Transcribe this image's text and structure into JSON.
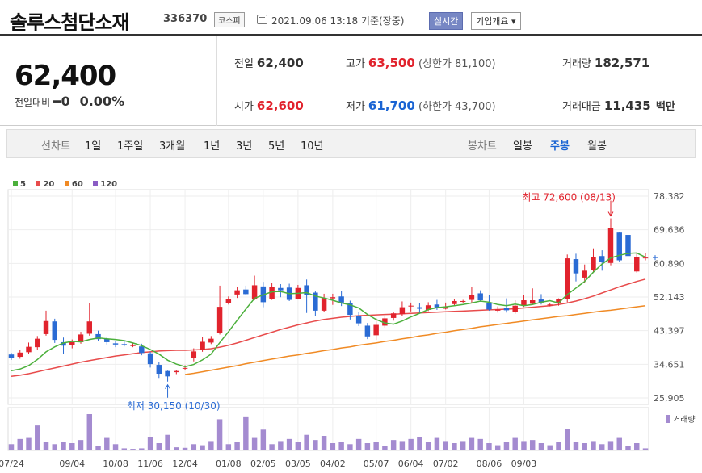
{
  "header": {
    "stock_name": "솔루스첨단소재",
    "stock_code": "336370",
    "market_badge": "코스피",
    "datetime": "2021.09.06 13:18 기준(장중)",
    "realtime_button": "실시간",
    "company_info_button": "기업개요 ▾"
  },
  "summary": {
    "price": "62,400",
    "change_label": "전일대비",
    "change_value": "━0",
    "change_pct": "0.00%",
    "prev_close_label": "전일",
    "prev_close": "62,400",
    "high_label": "고가",
    "high": "63,500",
    "upper_limit": "(상한가 81,100)",
    "volume_label": "거래량",
    "volume": "182,571",
    "open_label": "시가",
    "open": "62,600",
    "low_label": "저가",
    "low": "61,700",
    "lower_limit": "(하한가 43,700)",
    "amount_label": "거래대금",
    "amount": "11,435",
    "amount_unit": "백만"
  },
  "period_bar": {
    "line_chart_label": "선차트",
    "periods": [
      "1일",
      "1주일",
      "3개월",
      "1년",
      "3년",
      "5년",
      "10년"
    ],
    "candle_label": "봉차트",
    "candle_periods": [
      "일봉",
      "주봉",
      "월봉"
    ],
    "selected_candle": "주봉"
  },
  "chart_data": {
    "type": "candlestick",
    "legend": [
      {
        "name": "5",
        "color": "#4cb03c"
      },
      {
        "name": "20",
        "color": "#e84b4b"
      },
      {
        "name": "60",
        "color": "#f08a24"
      },
      {
        "name": "120",
        "color": "#8a5cc4"
      }
    ],
    "y_ticks": [
      78382,
      69636,
      60890,
      52143,
      43397,
      34651,
      25905
    ],
    "y_tick_labels": [
      "78,382",
      "69,636",
      "60,890",
      "52,143",
      "43,397",
      "34,651",
      "25,905"
    ],
    "ylim": [
      25905,
      78382
    ],
    "x_tick_labels": [
      "07/24",
      "09/04",
      "10/08",
      "11/06",
      "12/04",
      "01/08",
      "02/05",
      "03/05",
      "04/02",
      "05/07",
      "06/04",
      "07/02",
      "08/06",
      "09/03"
    ],
    "x_tick_index": [
      0,
      7,
      12,
      16,
      20,
      25,
      29,
      33,
      37,
      42,
      46,
      50,
      55,
      59
    ],
    "max_annotation": "최고 72,600 (08/13)",
    "min_annotation": "최저 30,150 (10/30)",
    "volume_label": "거래량",
    "up_color": "#e1232d",
    "down_color": "#2a6bd4",
    "candles": [
      [
        37200,
        36400,
        37600,
        35800
      ],
      [
        36600,
        37700,
        38300,
        36100
      ],
      [
        37800,
        39200,
        40300,
        37300
      ],
      [
        39100,
        41300,
        42000,
        38500
      ],
      [
        42500,
        45900,
        48600,
        42100
      ],
      [
        45800,
        41000,
        46500,
        40200
      ],
      [
        40400,
        39500,
        41600,
        37400
      ],
      [
        39600,
        40400,
        41100,
        38800
      ],
      [
        40400,
        42400,
        43100,
        40000
      ],
      [
        42600,
        45800,
        50500,
        42100
      ],
      [
        42500,
        41200,
        43400,
        40600
      ],
      [
        41300,
        40400,
        41600,
        39800
      ],
      [
        40100,
        39800,
        40700,
        39100
      ],
      [
        39900,
        39600,
        40700,
        39300
      ],
      [
        39400,
        39700,
        40300,
        39100
      ],
      [
        39300,
        37600,
        40000,
        37000
      ],
      [
        37500,
        34700,
        37900,
        33800
      ],
      [
        34500,
        32200,
        35300,
        31100
      ],
      [
        32900,
        31500,
        33000,
        30150
      ],
      [
        32600,
        32900,
        33200,
        32100
      ],
      [
        33500,
        33700,
        34400,
        33200
      ],
      [
        36300,
        38000,
        38800,
        35400
      ],
      [
        38400,
        40500,
        41800,
        37900
      ],
      [
        40300,
        41300,
        42000,
        39900
      ],
      [
        42900,
        49600,
        55100,
        42400
      ],
      [
        50500,
        51600,
        52300,
        50200
      ],
      [
        52800,
        53900,
        54700,
        51900
      ],
      [
        54100,
        52900,
        55100,
        52600
      ],
      [
        51700,
        55200,
        57700,
        51300
      ],
      [
        54900,
        50800,
        56100,
        49500
      ],
      [
        51700,
        54800,
        55800,
        51400
      ],
      [
        54500,
        53900,
        55500,
        52100
      ],
      [
        54600,
        51400,
        55600,
        51100
      ],
      [
        51700,
        54500,
        55300,
        51500
      ],
      [
        55200,
        52700,
        56700,
        48000
      ],
      [
        53300,
        48600,
        53600,
        47200
      ],
      [
        48600,
        51900,
        53000,
        48200
      ],
      [
        51800,
        52100,
        53000,
        50100
      ],
      [
        52300,
        50700,
        53700,
        49800
      ],
      [
        50600,
        47500,
        51200,
        46300
      ],
      [
        47200,
        45300,
        48300,
        44600
      ],
      [
        44700,
        41900,
        45400,
        41200
      ],
      [
        42200,
        44900,
        46700,
        41000
      ],
      [
        44700,
        46600,
        47300,
        44200
      ],
      [
        46700,
        47900,
        48200,
        46000
      ],
      [
        47700,
        49500,
        51000,
        47200
      ],
      [
        49800,
        49900,
        50700,
        48400
      ],
      [
        49500,
        49100,
        50500,
        48100
      ],
      [
        48800,
        50000,
        50800,
        48500
      ],
      [
        50200,
        49300,
        51400,
        48800
      ],
      [
        49100,
        49600,
        50700,
        48900
      ],
      [
        50300,
        51100,
        51700,
        50000
      ],
      [
        51100,
        51100,
        51400,
        50500
      ],
      [
        51400,
        52700,
        54800,
        50600
      ],
      [
        53100,
        51300,
        53900,
        50900
      ],
      [
        50600,
        48900,
        52600,
        48600
      ],
      [
        48600,
        48900,
        49700,
        48100
      ],
      [
        49300,
        48700,
        51800,
        48100
      ],
      [
        48200,
        49900,
        51300,
        47800
      ],
      [
        49900,
        51300,
        52600,
        49600
      ],
      [
        50400,
        51300,
        54400,
        50100
      ],
      [
        51500,
        50700,
        52900,
        50200
      ],
      [
        50200,
        50200,
        50600,
        49700
      ],
      [
        50500,
        51600,
        51800,
        49900
      ],
      [
        51600,
        62200,
        63200,
        50800
      ],
      [
        62000,
        58300,
        63400,
        56200
      ],
      [
        57200,
        59000,
        60600,
        55900
      ],
      [
        59200,
        62600,
        64800,
        58700
      ],
      [
        62800,
        61200,
        64300,
        59000
      ],
      [
        61000,
        70100,
        72600,
        60400
      ],
      [
        68900,
        61700,
        69100,
        61200
      ],
      [
        68300,
        62800,
        68600,
        58900
      ],
      [
        58800,
        62500,
        63600,
        58500
      ],
      [
        62400,
        62400,
        63500,
        61700
      ]
    ],
    "ma5": [
      33.0,
      33.4,
      34.3,
      35.9,
      37.9,
      39.2,
      40.2,
      40.6,
      40.5,
      41.1,
      41.5,
      41.3,
      41.1,
      40.8,
      40.2,
      39.5,
      38.5,
      37.3,
      35.7,
      34.7,
      34.0,
      34.6,
      35.8,
      37.3,
      40.3,
      43.1,
      46.1,
      49.0,
      51.8,
      52.7,
      53.5,
      53.6,
      53.0,
      53.1,
      53.3,
      52.4,
      51.9,
      51.3,
      50.6,
      50.1,
      49.3,
      47.6,
      46.3,
      45.4,
      45.1,
      45.9,
      47.0,
      47.9,
      48.9,
      49.4,
      49.6,
      49.9,
      50.2,
      50.6,
      51.1,
      50.8,
      50.2,
      49.9,
      50.3,
      49.9,
      50.2,
      50.8,
      51.2,
      50.6,
      52.8,
      54.5,
      56.2,
      58.6,
      60.7,
      62.3,
      63.0,
      63.5,
      63.6,
      62.5
    ],
    "ma20": [
      31.5,
      31.8,
      32.2,
      32.7,
      33.2,
      33.7,
      34.2,
      34.7,
      35.2,
      35.6,
      36.0,
      36.4,
      36.8,
      37.1,
      37.4,
      37.7,
      37.9,
      38.1,
      38.2,
      38.3,
      38.3,
      38.4,
      38.5,
      38.7,
      39.1,
      39.6,
      40.2,
      40.9,
      41.6,
      42.3,
      43.0,
      43.7,
      44.3,
      44.9,
      45.4,
      45.9,
      46.3,
      46.6,
      46.9,
      47.1,
      47.3,
      47.4,
      47.5,
      47.6,
      47.7,
      47.8,
      47.9,
      48.0,
      48.1,
      48.2,
      48.3,
      48.4,
      48.5,
      48.6,
      48.7,
      48.8,
      48.9,
      49.0,
      49.1,
      49.3,
      49.5,
      49.7,
      49.9,
      50.2,
      50.6,
      51.1,
      51.7,
      52.4,
      53.2,
      54.0,
      54.8,
      55.5,
      56.2,
      56.8
    ],
    "ma60": [
      null,
      null,
      null,
      null,
      null,
      null,
      null,
      null,
      null,
      null,
      null,
      null,
      null,
      null,
      null,
      null,
      null,
      null,
      null,
      null,
      32.0,
      32.3,
      32.7,
      33.1,
      33.5,
      33.9,
      34.3,
      34.8,
      35.2,
      35.6,
      36.0,
      36.4,
      36.8,
      37.1,
      37.5,
      37.8,
      38.2,
      38.5,
      38.9,
      39.2,
      39.6,
      39.9,
      40.2,
      40.6,
      40.9,
      41.3,
      41.6,
      42.0,
      42.3,
      42.7,
      43.0,
      43.4,
      43.7,
      44.0,
      44.4,
      44.7,
      45.0,
      45.3,
      45.6,
      45.9,
      46.2,
      46.5,
      46.8,
      47.1,
      47.3,
      47.6,
      47.9,
      48.2,
      48.5,
      48.7,
      49.0,
      49.3,
      49.6,
      49.9
    ],
    "volume": [
      12,
      22,
      24,
      48,
      16,
      12,
      16,
      14,
      20,
      70,
      8,
      24,
      12,
      4,
      3,
      4,
      26,
      14,
      30,
      6,
      5,
      12,
      10,
      18,
      60,
      12,
      16,
      64,
      24,
      40,
      12,
      18,
      22,
      16,
      30,
      20,
      28,
      14,
      16,
      12,
      22,
      14,
      16,
      8,
      20,
      18,
      22,
      26,
      16,
      24,
      18,
      14,
      18,
      24,
      22,
      14,
      10,
      16,
      24,
      18,
      20,
      14,
      10,
      16,
      42,
      16,
      14,
      18,
      12,
      18,
      24,
      8,
      14,
      4
    ]
  }
}
